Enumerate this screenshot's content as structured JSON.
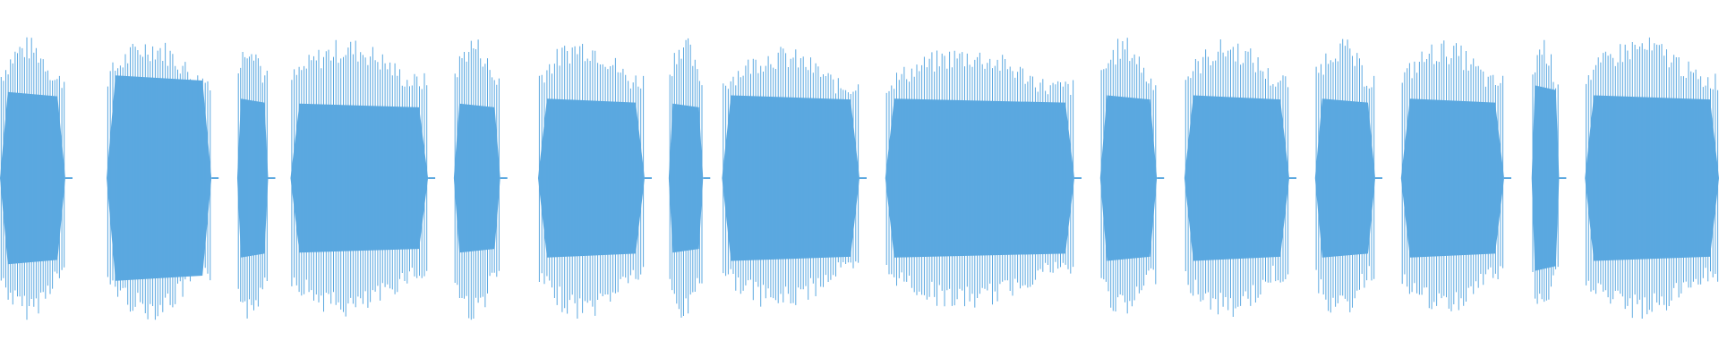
{
  "waveform": {
    "color": "#5ba8e0",
    "segments": [
      {
        "start": 0.0,
        "end": 0.038,
        "peak": 0.86,
        "core": 0.52,
        "lines": 28
      },
      {
        "start": 0.062,
        "end": 0.123,
        "peak": 0.86,
        "core": 0.62,
        "lines": 42
      },
      {
        "start": 0.138,
        "end": 0.156,
        "peak": 0.88,
        "core": 0.48,
        "lines": 14
      },
      {
        "start": 0.169,
        "end": 0.249,
        "peak": 0.85,
        "core": 0.45,
        "lines": 56
      },
      {
        "start": 0.264,
        "end": 0.291,
        "peak": 0.87,
        "core": 0.45,
        "lines": 20
      },
      {
        "start": 0.313,
        "end": 0.375,
        "peak": 0.86,
        "core": 0.48,
        "lines": 42
      },
      {
        "start": 0.389,
        "end": 0.409,
        "peak": 0.88,
        "core": 0.45,
        "lines": 15
      },
      {
        "start": 0.42,
        "end": 0.5,
        "peak": 0.8,
        "core": 0.5,
        "lines": 55
      },
      {
        "start": 0.515,
        "end": 0.625,
        "peak": 0.8,
        "core": 0.48,
        "lines": 75
      },
      {
        "start": 0.64,
        "end": 0.673,
        "peak": 0.86,
        "core": 0.5,
        "lines": 24
      },
      {
        "start": 0.689,
        "end": 0.75,
        "peak": 0.85,
        "core": 0.5,
        "lines": 42
      },
      {
        "start": 0.765,
        "end": 0.8,
        "peak": 0.86,
        "core": 0.48,
        "lines": 25
      },
      {
        "start": 0.815,
        "end": 0.875,
        "peak": 0.84,
        "core": 0.48,
        "lines": 42
      },
      {
        "start": 0.891,
        "end": 0.907,
        "peak": 0.86,
        "core": 0.56,
        "lines": 12
      },
      {
        "start": 0.922,
        "end": 1.0,
        "peak": 0.86,
        "core": 0.5,
        "lines": 55
      }
    ]
  }
}
